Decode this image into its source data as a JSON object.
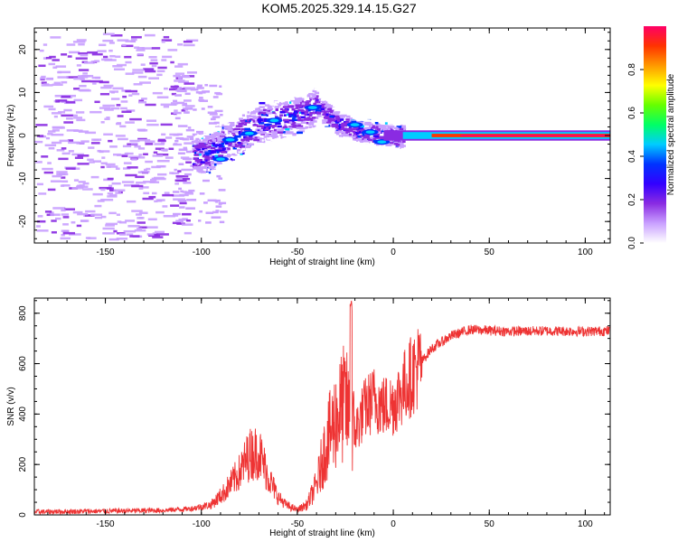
{
  "title": "KOM5.2025.329.14.15.G27",
  "chart_data": [
    {
      "type": "heatmap",
      "name": "spectrogram",
      "xlabel": "Height of straight line (km)",
      "ylabel": "Frequency (Hz)",
      "xlim": [
        -187,
        113
      ],
      "ylim": [
        -25,
        25
      ],
      "xticks": [
        -150,
        -100,
        -50,
        0,
        50,
        100
      ],
      "yticks": [
        -20,
        -10,
        0,
        10,
        20
      ],
      "colorbar": {
        "label": "Normalized spectral amplitude",
        "range": [
          0,
          1
        ],
        "ticks": [
          "0.0",
          "0.2",
          "0.4",
          "0.6",
          "0.8"
        ],
        "colors": [
          "#ffffff",
          "#c9a0ff",
          "#8a2be2",
          "#3300ff",
          "#0033ff",
          "#00ccff",
          "#00ff66",
          "#66ff00",
          "#ffff00",
          "#ff9900",
          "#ff3300",
          "#ff0066"
        ]
      },
      "ridge": [
        {
          "x": -100,
          "f": -4.5
        },
        {
          "x": -90,
          "f": -2
        },
        {
          "x": -80,
          "f": 0.5
        },
        {
          "x": -70,
          "f": 3
        },
        {
          "x": -60,
          "f": 4
        },
        {
          "x": -50,
          "f": 5
        },
        {
          "x": -40,
          "f": 7
        },
        {
          "x": -30,
          "f": 3
        },
        {
          "x": -20,
          "f": 1.5
        },
        {
          "x": -10,
          "f": 0.5
        },
        {
          "x": 0,
          "f": 0
        },
        {
          "x": 20,
          "f": 0
        },
        {
          "x": 113,
          "f": 0
        }
      ]
    },
    {
      "type": "line",
      "name": "snr",
      "xlabel": "Height of straight line (km)",
      "ylabel": "SNR (v/v)",
      "xlim": [
        -187,
        113
      ],
      "ylim": [
        0,
        860
      ],
      "xticks": [
        -150,
        -100,
        -50,
        0,
        50,
        100
      ],
      "yticks": [
        0,
        200,
        400,
        600,
        800
      ],
      "series": [
        {
          "name": "SNR",
          "color": "#ee3333",
          "x": [
            -187,
            -150,
            -120,
            -105,
            -95,
            -88,
            -80,
            -75,
            -70,
            -65,
            -60,
            -55,
            -50,
            -45,
            -40,
            -35,
            -30,
            -25,
            -22,
            -20,
            -15,
            -10,
            -5,
            0,
            5,
            10,
            20,
            30,
            40,
            60,
            80,
            100,
            113
          ],
          "values": [
            12,
            15,
            18,
            25,
            40,
            90,
            170,
            240,
            250,
            150,
            70,
            35,
            20,
            40,
            120,
            280,
            380,
            450,
            350,
            330,
            420,
            460,
            430,
            440,
            500,
            560,
            660,
            710,
            735,
            728,
            730,
            728,
            730
          ]
        }
      ]
    }
  ]
}
